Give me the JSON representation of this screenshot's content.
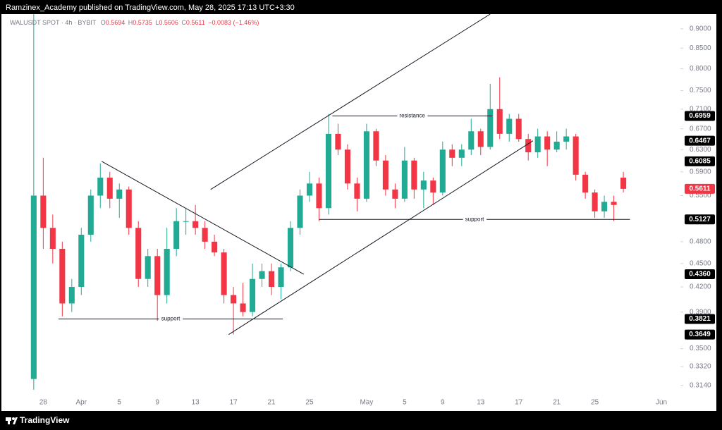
{
  "header": {
    "text": "Ramzinex_Academy published on TradingView.com, May 28, 2025 17:13 UTC+3:30"
  },
  "footer": {
    "brand": "TradingView"
  },
  "chart_data": {
    "type": "candlestick",
    "symbol": "WALUSDT SPOT · 4h · BYBIT",
    "ohlc_legend": [
      {
        "key": "O",
        "value": "0.5694"
      },
      {
        "key": "H",
        "value": "0.5735"
      },
      {
        "key": "L",
        "value": "0.5606"
      },
      {
        "key": "C",
        "value": "0.5611"
      }
    ],
    "change": "−0.0083 (−1.46%)",
    "x": [
      -1,
      0,
      1,
      2,
      3,
      4,
      5,
      6,
      7,
      8,
      9,
      10,
      11,
      12,
      13,
      14,
      15,
      16,
      17,
      18,
      19,
      20,
      21,
      22,
      23,
      24,
      25,
      26,
      27,
      28,
      29,
      30,
      31,
      32,
      33,
      34,
      35,
      36,
      37,
      38,
      39,
      40,
      41,
      42,
      43,
      44,
      45,
      46,
      47,
      48,
      49,
      50,
      51,
      52,
      53,
      54,
      55,
      56,
      57,
      58,
      59,
      60,
      61
    ],
    "open": [
      0.32,
      0.55,
      0.5,
      0.47,
      0.4,
      0.42,
      0.49,
      0.55,
      0.58,
      0.545,
      0.56,
      0.5,
      0.43,
      0.46,
      0.41,
      0.47,
      0.51,
      0.51,
      0.5,
      0.48,
      0.465,
      0.41,
      0.4,
      0.39,
      0.43,
      0.44,
      0.42,
      0.445,
      0.5,
      0.55,
      0.57,
      0.53,
      0.66,
      0.63,
      0.57,
      0.545,
      0.665,
      0.61,
      0.56,
      0.545,
      0.61,
      0.56,
      0.575,
      0.555,
      0.63,
      0.615,
      0.63,
      0.665,
      0.635,
      0.71,
      0.66,
      0.69,
      0.65,
      0.625,
      0.655,
      0.63,
      0.645,
      0.655,
      0.585,
      0.555,
      0.525,
      0.54,
      0.58
    ],
    "high": [
      0.94,
      0.615,
      0.52,
      0.48,
      0.43,
      0.5,
      0.56,
      0.605,
      0.59,
      0.57,
      0.565,
      0.51,
      0.47,
      0.47,
      0.5,
      0.53,
      0.53,
      0.535,
      0.51,
      0.49,
      0.47,
      0.42,
      0.425,
      0.45,
      0.45,
      0.45,
      0.45,
      0.51,
      0.56,
      0.59,
      0.58,
      0.7,
      0.68,
      0.64,
      0.58,
      0.68,
      0.67,
      0.62,
      0.57,
      0.635,
      0.615,
      0.59,
      0.58,
      0.645,
      0.64,
      0.64,
      0.69,
      0.67,
      0.765,
      0.78,
      0.7,
      0.7,
      0.66,
      0.67,
      0.665,
      0.665,
      0.67,
      0.66,
      0.59,
      0.56,
      0.55,
      0.55,
      0.59
    ],
    "low": [
      0.31,
      0.47,
      0.45,
      0.385,
      0.39,
      0.41,
      0.48,
      0.53,
      0.53,
      0.515,
      0.49,
      0.42,
      0.42,
      0.38,
      0.4,
      0.46,
      0.49,
      0.49,
      0.47,
      0.46,
      0.4,
      0.365,
      0.385,
      0.385,
      0.42,
      0.41,
      0.405,
      0.44,
      0.49,
      0.54,
      0.51,
      0.52,
      0.62,
      0.56,
      0.525,
      0.54,
      0.6,
      0.55,
      0.53,
      0.54,
      0.545,
      0.53,
      0.535,
      0.55,
      0.6,
      0.6,
      0.62,
      0.62,
      0.63,
      0.65,
      0.645,
      0.645,
      0.61,
      0.615,
      0.6,
      0.625,
      0.63,
      0.575,
      0.545,
      0.515,
      0.515,
      0.51,
      0.555
    ],
    "close": [
      0.55,
      0.5,
      0.47,
      0.4,
      0.42,
      0.49,
      0.55,
      0.58,
      0.545,
      0.56,
      0.5,
      0.43,
      0.46,
      0.41,
      0.47,
      0.51,
      0.51,
      0.5,
      0.48,
      0.465,
      0.41,
      0.4,
      0.39,
      0.43,
      0.44,
      0.42,
      0.445,
      0.5,
      0.55,
      0.57,
      0.53,
      0.66,
      0.63,
      0.57,
      0.545,
      0.665,
      0.61,
      0.56,
      0.545,
      0.61,
      0.56,
      0.575,
      0.555,
      0.63,
      0.615,
      0.63,
      0.665,
      0.635,
      0.71,
      0.66,
      0.69,
      0.65,
      0.625,
      0.655,
      0.63,
      0.645,
      0.655,
      0.585,
      0.555,
      0.525,
      0.54,
      0.535,
      0.5611
    ],
    "up_color": "#22ab94",
    "down_color": "#f23645",
    "xlim": [
      -4.4,
      67
    ],
    "xticks": [
      {
        "value": 0,
        "label": "28"
      },
      {
        "value": 4,
        "label": "Apr"
      },
      {
        "value": 8,
        "label": "5"
      },
      {
        "value": 12,
        "label": "9"
      },
      {
        "value": 16,
        "label": "13"
      },
      {
        "value": 20,
        "label": "17"
      },
      {
        "value": 24,
        "label": "21"
      },
      {
        "value": 28,
        "label": "25"
      },
      {
        "value": 34,
        "label": "May"
      },
      {
        "value": 38,
        "label": "5"
      },
      {
        "value": 42,
        "label": "9"
      },
      {
        "value": 46,
        "label": "13"
      },
      {
        "value": 50,
        "label": "17"
      },
      {
        "value": 54,
        "label": "21"
      },
      {
        "value": 58,
        "label": "25"
      },
      {
        "value": 65,
        "label": "Jun"
      }
    ],
    "ylim": [
      0.293,
      0.94
    ],
    "log_scale": true,
    "grid": false,
    "yticks": [
      {
        "value": 0.9,
        "label": "0.9000"
      },
      {
        "value": 0.85,
        "label": "0.8500"
      },
      {
        "value": 0.8,
        "label": "0.8000"
      },
      {
        "value": 0.75,
        "label": "0.7500"
      },
      {
        "value": 0.71,
        "label": "0.7100"
      },
      {
        "value": 0.67,
        "label": "0.6700"
      },
      {
        "value": 0.63,
        "label": "0.6300"
      },
      {
        "value": 0.59,
        "label": "0.5900"
      },
      {
        "value": 0.55,
        "label": "0.5500"
      },
      {
        "value": 0.48,
        "label": "0.4800"
      },
      {
        "value": 0.45,
        "label": "0.4500"
      },
      {
        "value": 0.42,
        "label": "0.4200"
      },
      {
        "value": 0.39,
        "label": "0.3900"
      },
      {
        "value": 0.35,
        "label": "0.3500"
      },
      {
        "value": 0.332,
        "label": "0.3320"
      },
      {
        "value": 0.314,
        "label": "0.3140"
      }
    ],
    "price_labels": [
      {
        "value": 0.6959,
        "label": "0.6959",
        "color": "#000000"
      },
      {
        "value": 0.6467,
        "label": "0.6467",
        "color": "#000000"
      },
      {
        "value": 0.6085,
        "label": "0.6085",
        "color": "#000000"
      },
      {
        "value": 0.5611,
        "label": "0.5611",
        "color": "#f23645"
      },
      {
        "value": 0.5127,
        "label": "0.5127",
        "color": "#000000"
      },
      {
        "value": 0.436,
        "label": "0.4360",
        "color": "#000000"
      },
      {
        "value": 0.3821,
        "label": "0.3821",
        "color": "#000000"
      },
      {
        "value": 0.3649,
        "label": "0.3649",
        "color": "#000000"
      }
    ],
    "drawings": [
      {
        "x": [
          1.6,
          25.2
        ],
        "y": [
          0.3821,
          0.3821
        ],
        "label": "support"
      },
      {
        "x": [
          6.15,
          27.4
        ],
        "y": [
          0.6085,
          0.436
        ]
      },
      {
        "x": [
          19.5,
          51.5
        ],
        "y": [
          0.3649,
          0.6467
        ]
      },
      {
        "x": [
          17.6,
          47.0
        ],
        "y": [
          0.56,
          0.94
        ]
      },
      {
        "x": [
          30.4,
          47.2
        ],
        "y": [
          0.6959,
          0.6959
        ],
        "label": "resistance"
      },
      {
        "x": [
          29.0,
          61.7
        ],
        "y": [
          0.5127,
          0.5127
        ],
        "label": "support"
      }
    ]
  }
}
